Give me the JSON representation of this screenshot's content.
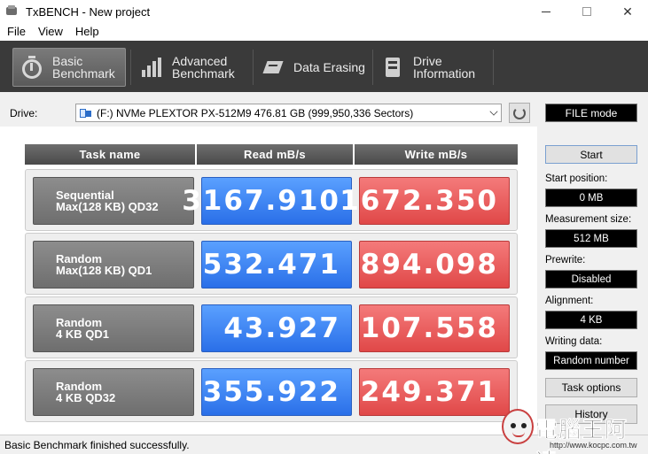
{
  "window": {
    "title": "TxBENCH - New project"
  },
  "menu": [
    "File",
    "View",
    "Help"
  ],
  "toolbar": {
    "tabs": [
      {
        "label": "Basic\nBenchmark",
        "icon": "stopwatch-icon",
        "active": true
      },
      {
        "label": "Advanced\nBenchmark",
        "icon": "bar-chart-icon",
        "active": false
      },
      {
        "label": "Data Erasing",
        "icon": "eraser-icon",
        "active": false
      },
      {
        "label": "Drive\nInformation",
        "icon": "drive-info-icon",
        "active": false
      }
    ]
  },
  "drive": {
    "label": "Drive:",
    "selected": "(F:) NVMe PLEXTOR PX-512M9  476.81 GB (999,950,336 Sectors)",
    "mode": "FILE mode"
  },
  "table": {
    "headers": [
      "Task name",
      "Read mB/s",
      "Write mB/s"
    ],
    "rows": [
      {
        "task": "Sequential\nMax(128 KB) QD32",
        "read": "3167.910",
        "write": "1672.350"
      },
      {
        "task": "Random\nMax(128 KB) QD1",
        "read": "532.471",
        "write": "894.098"
      },
      {
        "task": "Random\n4 KB QD1",
        "read": "43.927",
        "write": "107.558"
      },
      {
        "task": "Random\n4 KB QD32",
        "read": "355.922",
        "write": "249.371"
      }
    ]
  },
  "controls": {
    "start": "Start",
    "start_position_label": "Start position:",
    "start_position_value": "0 MB",
    "measurement_size_label": "Measurement size:",
    "measurement_size_value": "512 MB",
    "prewrite_label": "Prewrite:",
    "prewrite_value": "Disabled",
    "alignment_label": "Alignment:",
    "alignment_value": "4 KB",
    "writing_data_label": "Writing data:",
    "writing_data_value": "Random number",
    "task_options": "Task options",
    "history": "History"
  },
  "status": "Basic Benchmark finished successfully.",
  "watermark": {
    "text": "電腦王阿達",
    "url": "http://www.kocpc.com.tw"
  },
  "colors": {
    "read": "#2a6fe8",
    "write": "#e04848",
    "toolbar": "#3a3a3a"
  }
}
